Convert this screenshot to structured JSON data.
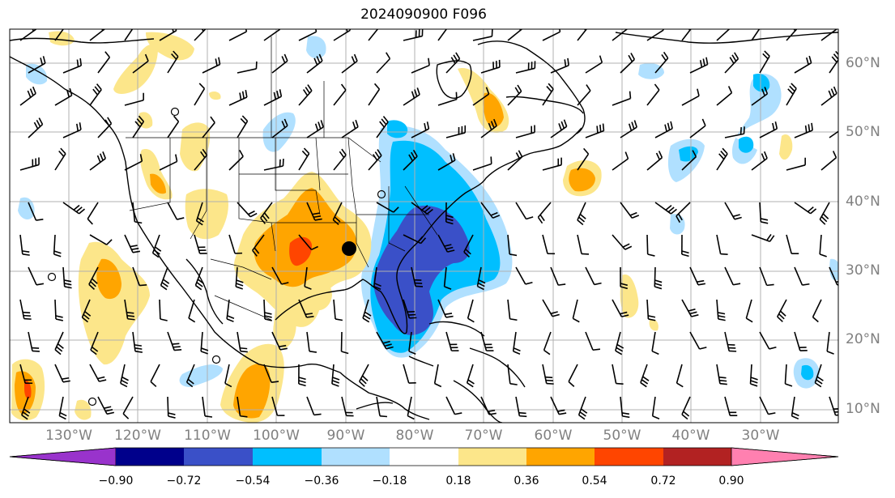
{
  "title": "2024090900 F096",
  "lat_labels": [
    "60°N",
    "50°N",
    "40°N",
    "30°N",
    "20°N",
    "10°N"
  ],
  "lon_labels": [
    "130°W",
    "120°W",
    "110°W",
    "100°W",
    "90°W",
    "80°W",
    "70°W",
    "60°W",
    "50°W",
    "40°W",
    "30°W"
  ],
  "colorbar": {
    "ticks": [
      "−0.90",
      "−0.72",
      "−0.54",
      "−0.36",
      "−0.18",
      "0.18",
      "0.36",
      "0.54",
      "0.72",
      "0.90"
    ],
    "colors": [
      "#9933cc",
      "#00008b",
      "#3a50c8",
      "#00bfff",
      "#b0e0ff",
      "#ffffff",
      "#fce68a",
      "#ffa500",
      "#ff4500",
      "#b22222",
      "#ff80b0"
    ]
  },
  "colors": {
    "blue_light": "#b0e0ff",
    "blue_mid": "#00bfff",
    "blue_dark": "#3a50c8",
    "yellow": "#fce68a",
    "orange": "#ffa500",
    "red": "#ff4500",
    "coast": "#000000",
    "grid": "#b0b0b0"
  },
  "marker": {
    "lon": -90,
    "lat": 33
  }
}
